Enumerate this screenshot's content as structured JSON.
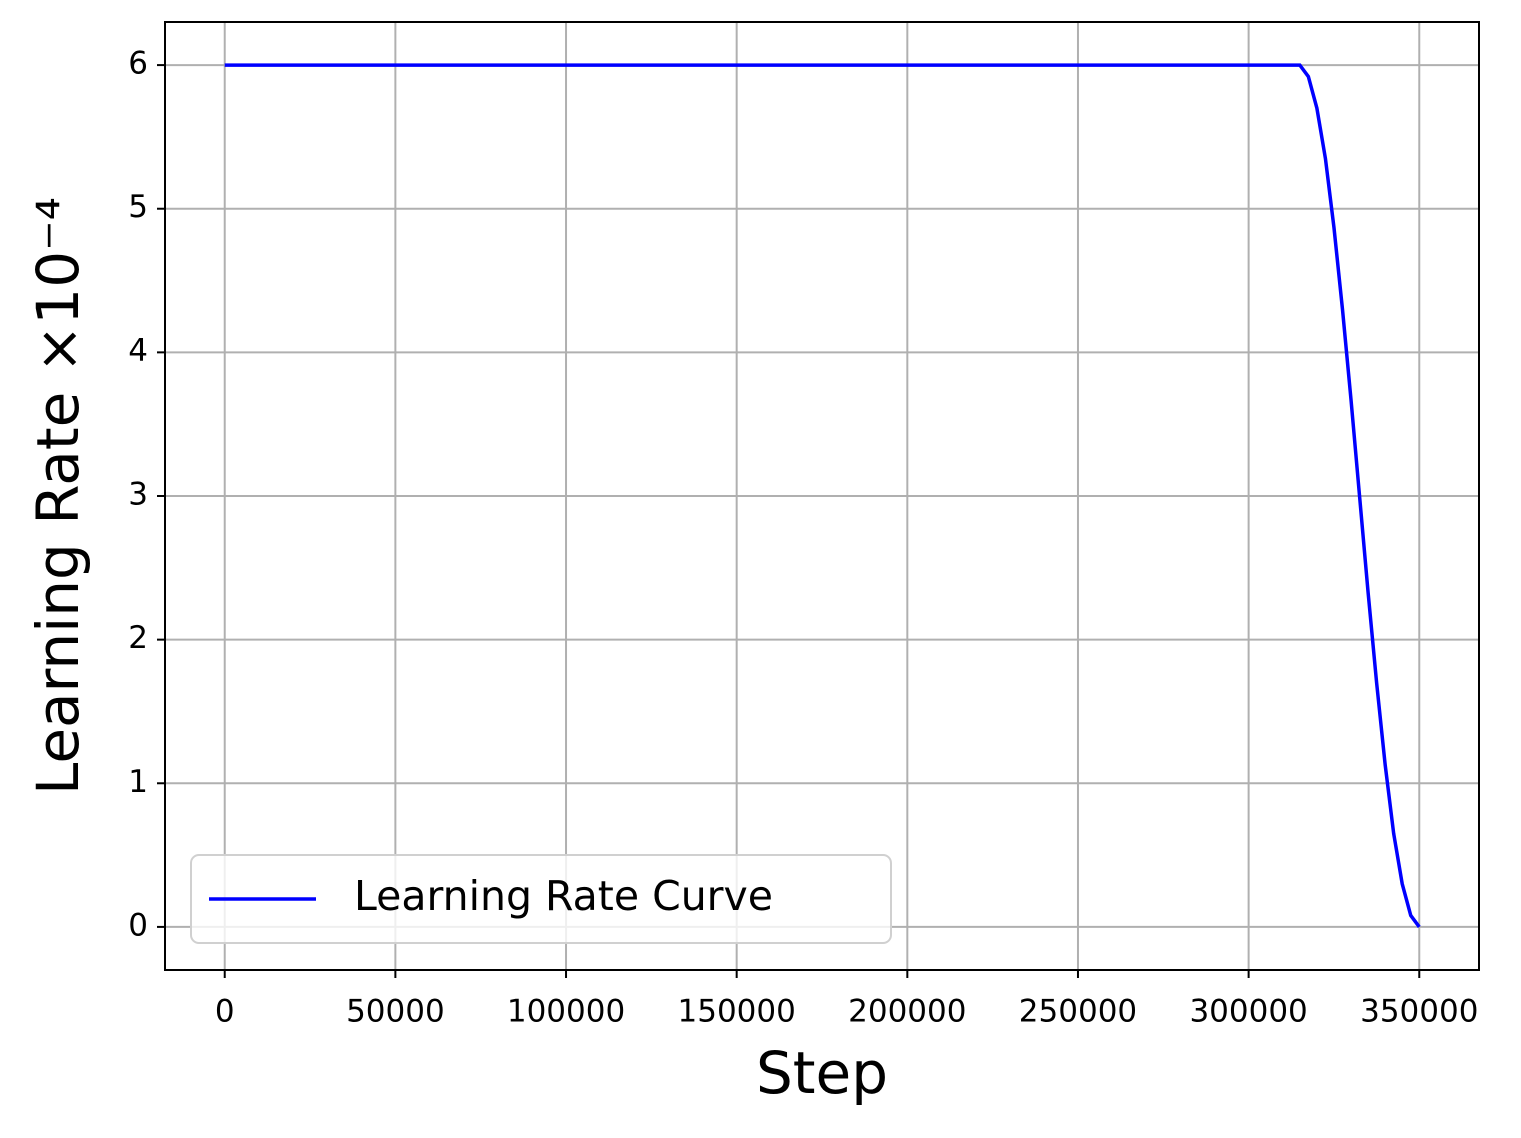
{
  "chart_data": {
    "type": "line",
    "xlabel": "Step",
    "ylabel": "Learning Rate ×10⁻⁴",
    "x": [
      0,
      315000,
      317500,
      320000,
      322500,
      325000,
      327500,
      330000,
      332500,
      335000,
      337500,
      340000,
      342500,
      345000,
      347500,
      350000
    ],
    "series": [
      {
        "name": "Learning Rate Curve",
        "color": "#0000ff",
        "values": [
          6,
          6,
          5.92,
          5.7,
          5.35,
          4.87,
          4.3,
          3.67,
          3.0,
          2.33,
          1.7,
          1.13,
          0.65,
          0.3,
          0.08,
          0
        ]
      }
    ],
    "xlim": [
      -17500,
      367500
    ],
    "ylim": [
      -0.3,
      6.3
    ],
    "xticks": [
      0,
      50000,
      100000,
      150000,
      200000,
      250000,
      300000,
      350000
    ],
    "yticks": [
      0,
      1,
      2,
      3,
      4,
      5,
      6
    ],
    "grid": true,
    "legend": "lower-left"
  }
}
